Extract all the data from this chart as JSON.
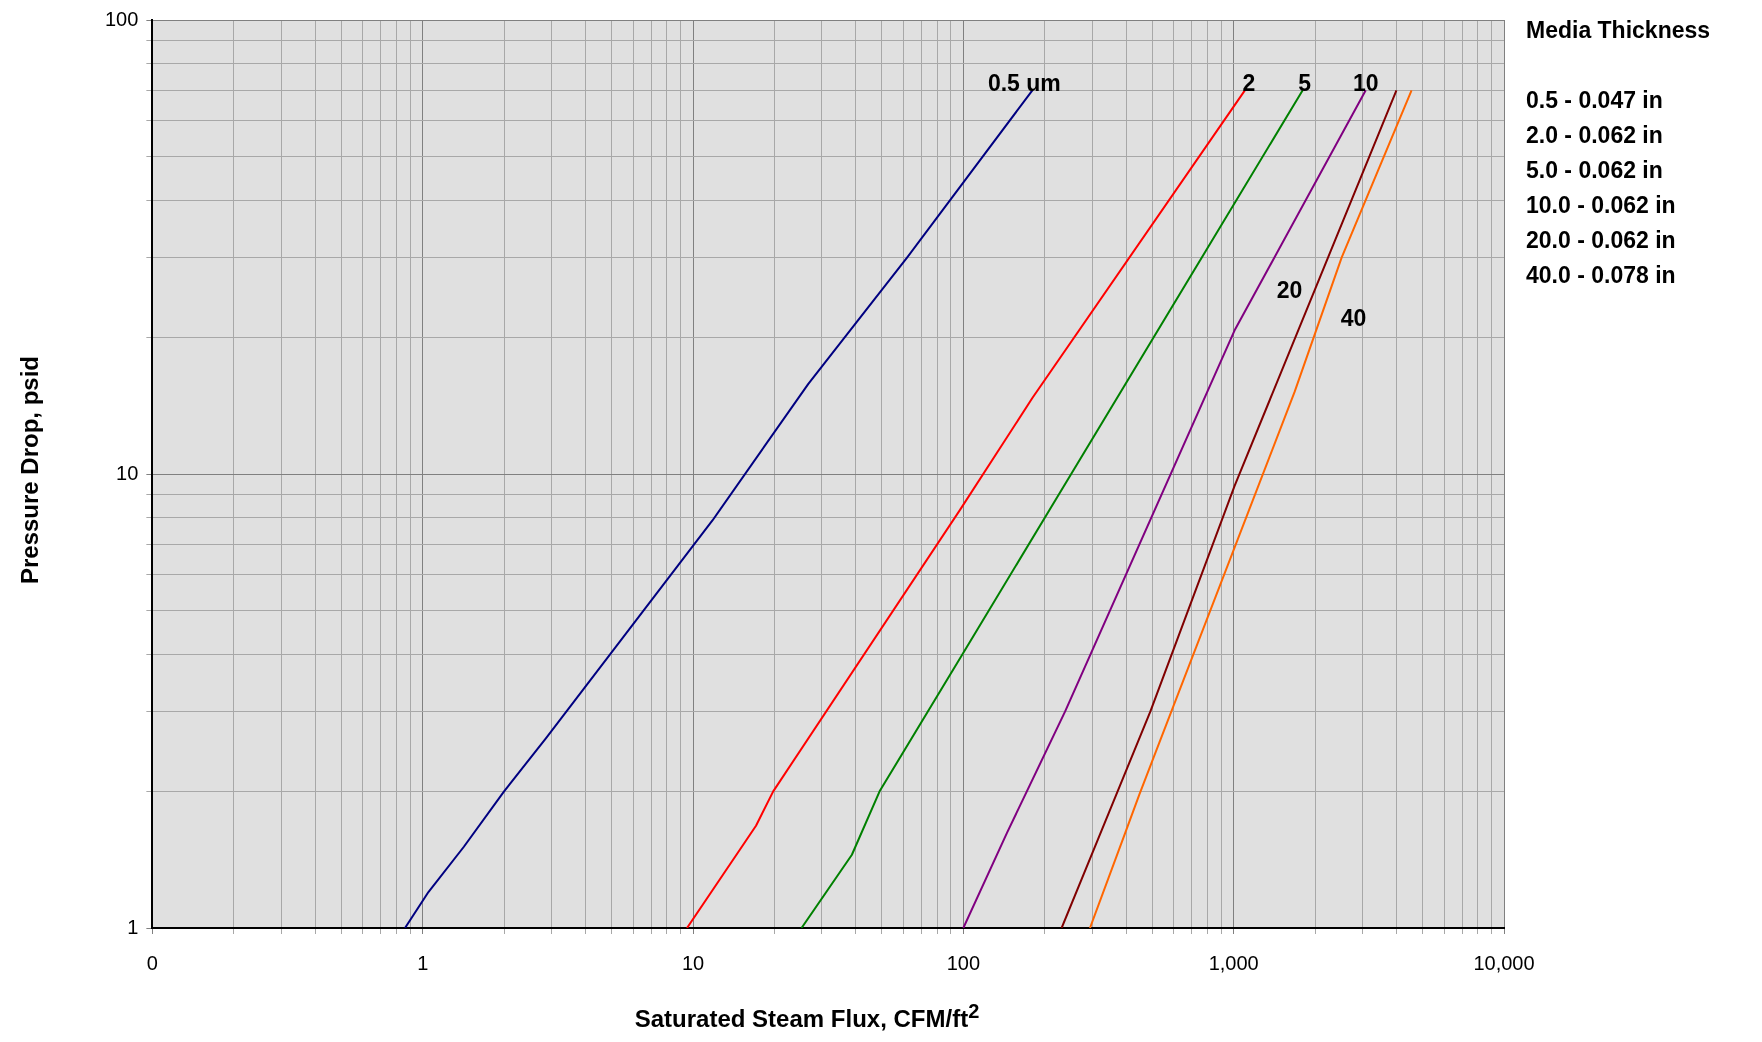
{
  "chart_data": {
    "type": "line",
    "xlabel": "Saturated Steam Flux, CFM/ft$^{2}$",
    "ylabel": "Pressure Drop, psid",
    "log": "xy",
    "grid": true,
    "legend": false,
    "marker": "none",
    "line_style": "solid",
    "xlim": [
      0.1,
      10000
    ],
    "ylim": [
      1,
      100
    ],
    "xticks": [
      {
        "value": 0.1,
        "label": "0"
      },
      {
        "value": 0.2,
        "label": null
      },
      {
        "value": 0.3,
        "label": null
      },
      {
        "value": 0.4,
        "label": null
      },
      {
        "value": 0.5,
        "label": null
      },
      {
        "value": 0.6,
        "label": null
      },
      {
        "value": 0.7,
        "label": null
      },
      {
        "value": 0.8,
        "label": null
      },
      {
        "value": 0.9,
        "label": null
      },
      1,
      {
        "value": 2,
        "label": null
      },
      {
        "value": 3,
        "label": null
      },
      {
        "value": 4,
        "label": null
      },
      {
        "value": 5,
        "label": null
      },
      {
        "value": 6,
        "label": null
      },
      {
        "value": 7,
        "label": null
      },
      {
        "value": 8,
        "label": null
      },
      {
        "value": 9,
        "label": null
      },
      10,
      {
        "value": 20,
        "label": null
      },
      {
        "value": 30,
        "label": null
      },
      {
        "value": 40,
        "label": null
      },
      {
        "value": 50,
        "label": null
      },
      {
        "value": 60,
        "label": null
      },
      {
        "value": 70,
        "label": null
      },
      {
        "value": 80,
        "label": null
      },
      {
        "value": 90,
        "label": null
      },
      100,
      {
        "value": 200,
        "label": null
      },
      {
        "value": 300,
        "label": null
      },
      {
        "value": 400,
        "label": null
      },
      {
        "value": 500,
        "label": null
      },
      {
        "value": 600,
        "label": null
      },
      {
        "value": 700,
        "label": null
      },
      {
        "value": 800,
        "label": null
      },
      {
        "value": 900,
        "label": null
      },
      {
        "value": 1000,
        "label": "1,000"
      },
      {
        "value": 2000,
        "label": null
      },
      {
        "value": 3000,
        "label": null
      },
      {
        "value": 4000,
        "label": null
      },
      {
        "value": 5000,
        "label": null
      },
      {
        "value": 6000,
        "label": null
      },
      {
        "value": 7000,
        "label": null
      },
      {
        "value": 8000,
        "label": null
      },
      {
        "value": 9000,
        "label": null
      },
      {
        "value": 10000,
        "label": "10,000"
      }
    ],
    "yticks": [
      1,
      {
        "value": 2,
        "label": null
      },
      {
        "value": 3,
        "label": null
      },
      {
        "value": 4,
        "label": null
      },
      {
        "value": 5,
        "label": null
      },
      {
        "value": 6,
        "label": null
      },
      {
        "value": 7,
        "label": null
      },
      {
        "value": 8,
        "label": null
      },
      {
        "value": 9,
        "label": null
      },
      10,
      {
        "value": 20,
        "label": null
      },
      {
        "value": 30,
        "label": null
      },
      {
        "value": 40,
        "label": null
      },
      {
        "value": 50,
        "label": null
      },
      {
        "value": 60,
        "label": null
      },
      {
        "value": 70,
        "label": null
      },
      {
        "value": 80,
        "label": null
      },
      {
        "value": 90,
        "label": null
      },
      100
    ],
    "series": [
      {
        "color": "#000080",
        "x": [
          0.86,
          1.05,
          1.42,
          2,
          2.86,
          11.8,
          26.7,
          62,
          180
        ],
        "values": [
          1,
          1.2,
          1.51,
          2,
          2.62,
          7.9,
          15.8,
          30,
          70
        ]
      },
      {
        "color": "#ff0000",
        "x": [
          9.5,
          17.1,
          19.8,
          98,
          180,
          1100
        ],
        "values": [
          1,
          1.68,
          2,
          8.4,
          14.7,
          70
        ]
      },
      {
        "color": "#008000",
        "x": [
          25.2,
          38.7,
          49,
          99,
          1800
        ],
        "values": [
          1,
          1.45,
          2,
          4,
          70
        ]
      },
      {
        "color": "#800080",
        "x": [
          100,
          145,
          238,
          1007,
          3080
        ],
        "values": [
          1,
          1.62,
          3,
          20.7,
          70
        ]
      },
      {
        "color": "#800000",
        "x": [
          231,
          315,
          492,
          1007,
          4000
        ],
        "values": [
          1,
          1.57,
          3,
          9.4,
          70
        ]
      },
      {
        "color": "#ff6600",
        "x": [
          294,
          397,
          448,
          1683,
          2510,
          4550
        ],
        "values": [
          1,
          1.62,
          1.97,
          15.2,
          30,
          70
        ]
      }
    ],
    "annotations": [
      "0.5 um",
      "2",
      "5",
      "10",
      "20",
      "40",
      "Media Thickness",
      "0.5 - 0.047 in",
      "2.0 - 0.062 in",
      "5.0 - 0.062 in",
      "10.0 - 0.062 in",
      "20.0 - 0.062 in",
      "40.0 - 0.078 in"
    ]
  }
}
